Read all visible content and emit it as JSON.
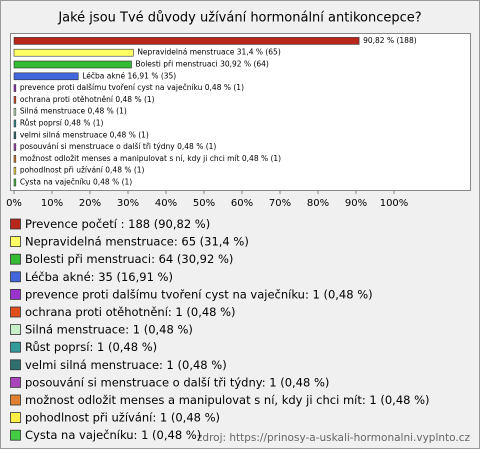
{
  "chart_data": {
    "type": "bar",
    "orientation": "horizontal",
    "title": "Jaké jsou Tvé důvody užívání hormonální antikoncepce?",
    "categories": [
      "Prevence početí",
      "Nepravidelná menstruace",
      "Bolesti při menstruaci",
      "Léčba akné",
      "prevence proti dalšímu tvoření cyst na vaječníku",
      "ochrana proti otěhotnění",
      "Silná menstruace",
      "Růst poprsí",
      "velmi silná menstruace",
      "posouvání si menstruace o další tři týdny",
      "možnost odložit menses a manipulovat s ní, kdy ji chci mít",
      "pohodlnost při užívání",
      "Cysta na vaječníku"
    ],
    "values": [
      90.82,
      31.4,
      30.92,
      16.91,
      0.48,
      0.48,
      0.48,
      0.48,
      0.48,
      0.48,
      0.48,
      0.48,
      0.48
    ],
    "value_labels": [
      "90,82 % (188)",
      "Nepravidelná menstruace 31,4 % (65)",
      "Bolesti při menstruaci 30,92 % (64)",
      "Léčba akné 16,91 % (35)",
      "prevence proti dalšímu tvoření cyst na vaječníku 0,48 % (1)",
      "ochrana proti otěhotnění 0,48 % (1)",
      "Silná menstruace 0,48 % (1)",
      "Růst poprsí 0,48 % (1)",
      "velmi silná menstruace 0,48 % (1)",
      "posouvání si menstruace o další tři týdny 0,48 % (1)",
      "možnost odložit menses a manipulovat s ní, kdy ji chci mít 0,48 % (1)",
      "pohodlnost při užívání 0,48 % (1)",
      "Cysta na vaječníku 0,48 % (1)"
    ],
    "legend_labels": [
      "Prevence početí : 188 (90,82 %)",
      "Nepravidelná menstruace: 65 (31,4 %)",
      "Bolesti při menstruaci: 64 (30,92 %)",
      "Léčba akné: 35 (16,91 %)",
      "prevence proti dalšímu tvoření cyst na vaječníku: 1 (0,48 %)",
      "ochrana proti otěhotnění: 1 (0,48 %)",
      "Silná menstruace: 1 (0,48 %)",
      "Růst poprsí: 1 (0,48 %)",
      "velmi silná menstruace: 1 (0,48 %)",
      "posouvání si menstruace o další tři týdny: 1 (0,48 %)",
      "možnost odložit menses a manipulovat s ní, kdy ji chci mít: 1 (0,48 %)",
      "pohodlnost při užívání: 1 (0,48 %)",
      "Cysta na vaječníku: 1 (0,48 %)"
    ],
    "colors": [
      "#b8261c",
      "#ffff66",
      "#33bb33",
      "#4466dd",
      "#9933cc",
      "#e0501e",
      "#c8f0c8",
      "#339999",
      "#2f6f6f",
      "#aa44bb",
      "#e08030",
      "#ffee44",
      "#44cc44"
    ],
    "xlim": [
      0,
      100
    ],
    "xticks": [
      {
        "value": 0,
        "label": "0%"
      },
      {
        "value": 10,
        "label": "10%"
      },
      {
        "value": 20,
        "label": "20%"
      },
      {
        "value": 30,
        "label": "30%"
      },
      {
        "value": 40,
        "label": "40%"
      },
      {
        "value": 50,
        "label": "50%"
      },
      {
        "value": 60,
        "label": "60%"
      },
      {
        "value": 70,
        "label": "70%"
      },
      {
        "value": 80,
        "label": "80%"
      },
      {
        "value": 90,
        "label": "90%"
      },
      {
        "value": 100,
        "label": "100%"
      }
    ],
    "source": "zdroj: https://prinosy-a-uskali-hormonalni.vyplnto.cz"
  }
}
